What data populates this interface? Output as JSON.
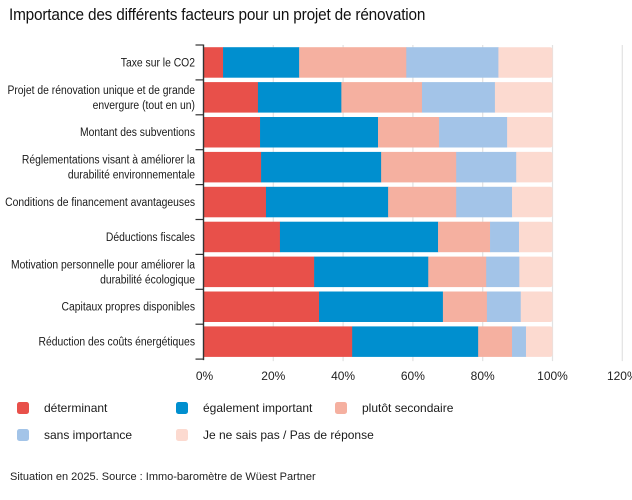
{
  "chart_data": {
    "type": "bar",
    "orientation": "horizontal",
    "stacked": true,
    "title": "Importance des différents facteurs pour un projet de rénovation",
    "xlabel": "",
    "ylabel": "",
    "xlim": [
      0,
      120
    ],
    "x_ticks": [
      0,
      20,
      40,
      60,
      80,
      100,
      120
    ],
    "x_tick_labels": [
      "0%",
      "20%",
      "40%",
      "60%",
      "80%",
      "100%",
      "120%"
    ],
    "grid": "vertical",
    "legend_position": "bottom",
    "categories": [
      "Taxe sur le CO2",
      "Projet de rénovation unique et de grande envergure (tout en un)",
      "Montant des subventions",
      "Réglementations visant à améliorer la durabilité environnementale",
      "Conditions de financement avantageuses",
      "Déductions fiscales",
      "Motivation personnelle pour améliorer la durabilité écologique",
      "Capitaux propres disponibles",
      "Réduction des coûts énergétiques"
    ],
    "category_label_lines": [
      [
        "Taxe sur le CO2"
      ],
      [
        "Projet de rénovation unique et de grande",
        "envergure (tout en un)"
      ],
      [
        "Montant des subventions"
      ],
      [
        "Réglementations visant à améliorer la",
        "durabilité environnementale"
      ],
      [
        "Conditions de financement avantageuses"
      ],
      [
        "Déductions fiscales"
      ],
      [
        "Motivation personnelle pour améliorer la",
        "durabilité écologique"
      ],
      [
        "Capitaux propres disponibles"
      ],
      [
        "Réduction des coûts énergétiques"
      ]
    ],
    "series": [
      {
        "name": "déterminant",
        "color": "#E8504A",
        "values": [
          5.6,
          15.6,
          16.2,
          16.5,
          17.9,
          21.9,
          31.7,
          33.1,
          42.6
        ]
      },
      {
        "name": "également important",
        "color": "#008FCF",
        "values": [
          21.8,
          23.9,
          33.8,
          34.4,
          35.0,
          45.3,
          32.7,
          35.5,
          36.1
        ]
      },
      {
        "name": "plutôt secondaire",
        "color": "#F5B0A0",
        "values": [
          30.7,
          23.1,
          17.5,
          21.5,
          19.5,
          14.9,
          16.6,
          12.6,
          9.7
        ]
      },
      {
        "name": "sans importance",
        "color": "#A3C4E8",
        "values": [
          26.4,
          20.9,
          19.5,
          17.2,
          16.0,
          8.3,
          9.5,
          9.7,
          4.0
        ]
      },
      {
        "name": "Je ne sais pas / Pas de réponse",
        "color": "#FCDAD0",
        "values": [
          15.5,
          16.5,
          13.0,
          10.4,
          11.6,
          9.6,
          9.5,
          9.1,
          7.6
        ]
      }
    ],
    "source": "Situation en 2025. Source : Immo-baromètre de Wüest Partner"
  },
  "colors": {
    "gridline": "#e2e2e2",
    "axis": "#333333"
  }
}
